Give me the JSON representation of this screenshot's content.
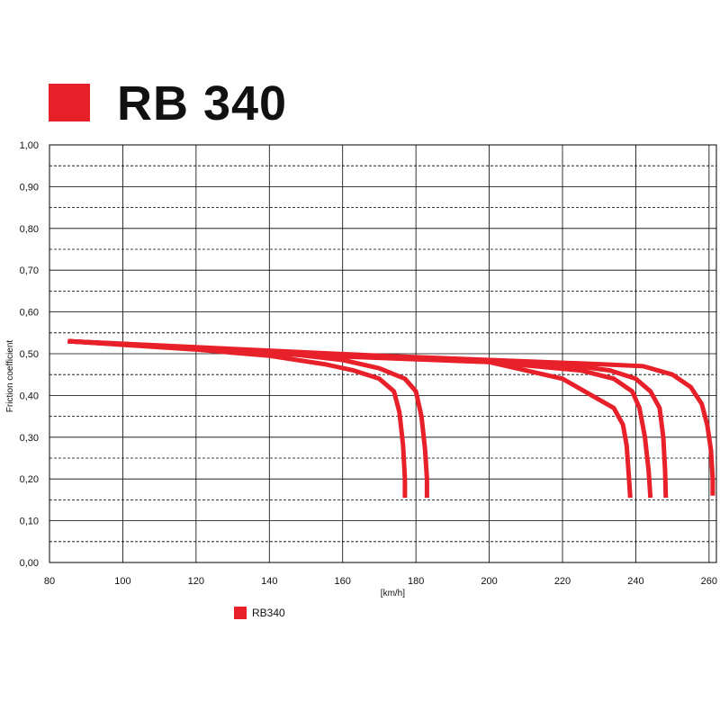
{
  "colors": {
    "series": "#e8202a",
    "grid": "#000000",
    "text": "#111111"
  },
  "chart_data": {
    "type": "line",
    "title": "RB 340",
    "xlabel": "[km/h]",
    "ylabel": "Friction coefficient",
    "xlim": [
      80,
      262
    ],
    "ylim": [
      0,
      1.0
    ],
    "x_ticks": [
      80,
      100,
      120,
      140,
      160,
      180,
      200,
      220,
      240,
      260
    ],
    "x_tick_labels": [
      "80",
      "100",
      "120",
      "140",
      "160",
      "180",
      "200",
      "220",
      "240",
      "260"
    ],
    "y_ticks": [
      0,
      0.1,
      0.2,
      0.3,
      0.4,
      0.5,
      0.6,
      0.7,
      0.8,
      0.9,
      1.0
    ],
    "y_tick_labels": [
      "0,00",
      "0,10",
      "0,20",
      "0,30",
      "0,40",
      "0,50",
      "0,60",
      "0,70",
      "0,80",
      "0,90",
      "1,00"
    ],
    "grid": {
      "major": true,
      "minor_dashed_y": true
    },
    "legend": {
      "position": "bottom-left",
      "entries": [
        "RB340"
      ]
    },
    "series": [
      {
        "x": [
          85,
          120,
          140,
          155,
          163,
          170,
          174,
          175.5,
          176.5,
          177,
          177
        ],
        "y": [
          0.53,
          0.51,
          0.495,
          0.475,
          0.46,
          0.44,
          0.41,
          0.36,
          0.28,
          0.2,
          0.155
        ]
      },
      {
        "x": [
          85,
          120,
          145,
          160,
          170,
          177,
          180,
          181.5,
          182.5,
          183,
          183
        ],
        "y": [
          0.53,
          0.515,
          0.5,
          0.485,
          0.465,
          0.44,
          0.41,
          0.35,
          0.27,
          0.2,
          0.155
        ]
      },
      {
        "x": [
          85,
          140,
          200,
          220,
          228,
          234,
          236.5,
          237.5,
          238,
          238.5
        ],
        "y": [
          0.53,
          0.5,
          0.48,
          0.44,
          0.4,
          0.37,
          0.33,
          0.28,
          0.22,
          0.155
        ]
      },
      {
        "x": [
          85,
          150,
          200,
          225,
          234,
          239,
          241,
          242.5,
          243.5,
          244
        ],
        "y": [
          0.53,
          0.5,
          0.48,
          0.46,
          0.44,
          0.41,
          0.37,
          0.3,
          0.22,
          0.155
        ]
      },
      {
        "x": [
          85,
          160,
          220,
          233,
          240,
          244,
          246.5,
          247.5,
          248,
          248.2
        ],
        "y": [
          0.53,
          0.495,
          0.475,
          0.46,
          0.44,
          0.41,
          0.37,
          0.3,
          0.22,
          0.155
        ]
      },
      {
        "x": [
          85,
          170,
          230,
          242,
          250,
          255,
          258,
          259.5,
          260.5,
          261,
          261
        ],
        "y": [
          0.53,
          0.495,
          0.475,
          0.47,
          0.45,
          0.42,
          0.38,
          0.33,
          0.27,
          0.2,
          0.16
        ]
      }
    ]
  }
}
